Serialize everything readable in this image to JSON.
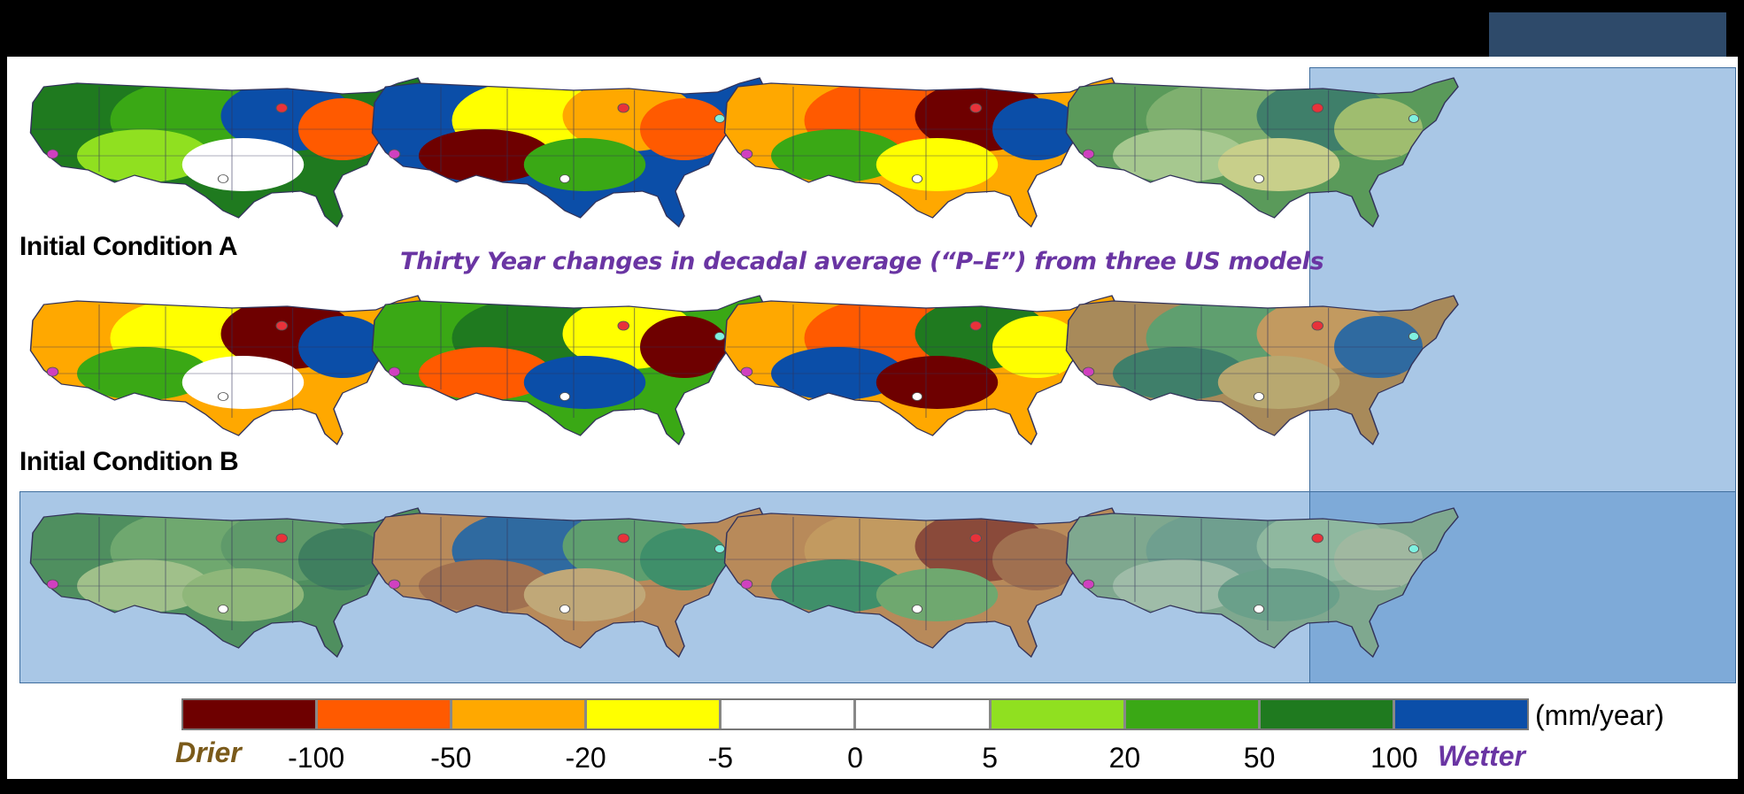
{
  "subtitle": "Thirty Year changes in decadal average (“P–E”) from three US models",
  "row_labels": [
    "Initial Condition A",
    "Initial Condition B"
  ],
  "legend": {
    "units": "(mm/year)",
    "drier_label": "Drier",
    "wetter_label": "Wetter",
    "ticks": [
      "-100",
      "-50",
      "-20",
      "-5",
      "0",
      "5",
      "20",
      "50",
      "100"
    ],
    "colors": [
      "#6e0000",
      "#ff5a00",
      "#ffa800",
      "#ffff00",
      "#ffffff",
      "#ffffff",
      "#90e020",
      "#3aa815",
      "#1f7a1f",
      "#0b4ea8"
    ]
  },
  "maps": [
    {
      "name": "map-a-model-1",
      "blobs": [
        "#1f7a1f",
        "#3aa815",
        "#0b4ea8",
        "#90e020",
        "#ffffff",
        "#ff5a00"
      ]
    },
    {
      "name": "map-a-model-2",
      "blobs": [
        "#0b4ea8",
        "#ffff00",
        "#ffa800",
        "#6e0000",
        "#3aa815",
        "#ff5a00"
      ]
    },
    {
      "name": "map-a-model-3",
      "blobs": [
        "#ffa800",
        "#ff5a00",
        "#6e0000",
        "#3aa815",
        "#ffff00",
        "#0b4ea8"
      ]
    },
    {
      "name": "map-a-mean",
      "blobs": [
        "#5a9a5a",
        "#7fb06f",
        "#3f7f6a",
        "#a6c88f",
        "#c8cf8a",
        "#9fbd6f"
      ]
    },
    {
      "name": "map-b-model-1",
      "blobs": [
        "#ffa800",
        "#ffff00",
        "#6e0000",
        "#3aa815",
        "#ffffff",
        "#0b4ea8"
      ]
    },
    {
      "name": "map-b-model-2",
      "blobs": [
        "#3aa815",
        "#1f7a1f",
        "#ffff00",
        "#ff5a00",
        "#0b4ea8",
        "#6e0000"
      ]
    },
    {
      "name": "map-b-model-3",
      "blobs": [
        "#ffa800",
        "#ff5a00",
        "#1f7a1f",
        "#0b4ea8",
        "#6e0000",
        "#ffff00"
      ]
    },
    {
      "name": "map-b-mean",
      "blobs": [
        "#a88a5a",
        "#5f9f6f",
        "#c29a60",
        "#3f7f6a",
        "#b8a870",
        "#2f6aa0"
      ]
    },
    {
      "name": "map-mean-model-1",
      "blobs": [
        "#4f8f5f",
        "#6fa86f",
        "#5f9a6a",
        "#a0c08a",
        "#8fb77a",
        "#3f7f5f"
      ]
    },
    {
      "name": "map-mean-model-2",
      "blobs": [
        "#b88a5a",
        "#2f6aa0",
        "#5f9f6f",
        "#a07050",
        "#c0a878",
        "#3f8f6a"
      ]
    },
    {
      "name": "map-mean-model-3",
      "blobs": [
        "#b88a5a",
        "#c29a60",
        "#8a4a3a",
        "#3f8f6a",
        "#6fa86f",
        "#a07050"
      ]
    },
    {
      "name": "map-grand-mean",
      "blobs": [
        "#7fa88f",
        "#6f9f8f",
        "#8fb89f",
        "#9fbca8",
        "#6aa08a",
        "#a0b8a0"
      ]
    }
  ]
}
